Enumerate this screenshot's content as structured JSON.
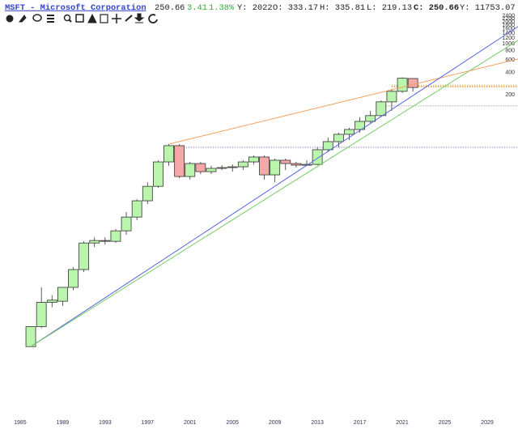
{
  "header": {
    "symbol": "MSFT - Microsoft Corporation",
    "last": "250.66",
    "change": "3.41",
    "change_pct": "1.38%",
    "year": "Y: 2022",
    "open": "O: 333.17",
    "high": "H: 335.81",
    "low": "L: 219.13",
    "close": "C: 250.66",
    "volume": "Y: 11753.07"
  },
  "chart_data": {
    "type": "candlestick",
    "x": [
      1986,
      1987,
      1988,
      1989,
      1990,
      1991,
      1992,
      1993,
      1994,
      1995,
      1996,
      1997,
      1998,
      1999,
      2000,
      2001,
      2002,
      2003,
      2004,
      2005,
      2006,
      2007,
      2008,
      2009,
      2010,
      2011,
      2012,
      2013,
      2014,
      2015,
      2016,
      2017,
      2018,
      2019,
      2020,
      2021,
      2022
    ],
    "open": [
      0.069,
      0.13,
      0.28,
      0.29,
      0.45,
      0.79,
      1.83,
      1.98,
      1.93,
      2.69,
      4.16,
      6.96,
      11.0,
      23.8,
      39.8,
      15.0,
      22.6,
      17.5,
      19.4,
      19.9,
      20.4,
      23.8,
      27.8,
      15.8,
      25.1,
      22.6,
      21.5,
      22.0,
      35.0,
      45.2,
      57.0,
      66.4,
      85.8,
      103,
      159,
      222,
      333.17
    ],
    "high": [
      0.13,
      0.45,
      0.35,
      0.45,
      0.85,
      1.93,
      2.19,
      2.19,
      2.84,
      4.86,
      7.3,
      12.5,
      25.1,
      41.8,
      41.8,
      23.8,
      23.8,
      21.0,
      21.5,
      22.0,
      25.1,
      29.2,
      29.2,
      26.4,
      26.4,
      23.8,
      25.1,
      37.8,
      51.4,
      60.0,
      70.0,
      97.6,
      120,
      167,
      239,
      345,
      335.81
    ],
    "low": [
      0.069,
      0.124,
      0.24,
      0.25,
      0.41,
      0.73,
      1.61,
      1.74,
      1.83,
      2.37,
      3.76,
      6.28,
      10.5,
      21.0,
      14.3,
      13.6,
      16.2,
      16.2,
      18.4,
      17.5,
      18.4,
      22.0,
      13.6,
      12.5,
      18.4,
      19.9,
      21.0,
      21.5,
      32.4,
      37.8,
      47.6,
      60.0,
      81.6,
      97.6,
      120,
      211,
      219.13
    ],
    "close": [
      0.13,
      0.28,
      0.3,
      0.45,
      0.79,
      1.83,
      1.98,
      1.93,
      2.69,
      4.16,
      6.96,
      11.0,
      23.8,
      39.8,
      15.0,
      22.6,
      17.5,
      19.4,
      19.9,
      20.4,
      23.8,
      27.8,
      15.8,
      25.1,
      22.6,
      21.5,
      22.0,
      35.0,
      45.2,
      57.0,
      66.4,
      85.8,
      103,
      159,
      222,
      336,
      250.66
    ],
    "up_color": "#baf5ad",
    "down_color": "#f5a8a8",
    "xlim": [
      1983.1,
      2031.9
    ],
    "xticks": [
      1985,
      1989,
      1993,
      1997,
      2001,
      2005,
      2009,
      2013,
      2017,
      2021,
      2025,
      2029
    ],
    "ylim": [
      0.0085,
      2650
    ],
    "log_scale": true,
    "grid": false,
    "yticks": [
      200,
      400,
      600,
      800,
      1000,
      1200,
      1400,
      1600,
      1800,
      2000,
      2200,
      2400
    ],
    "trendlines": [
      {
        "color": "#f5a05a",
        "x": [
          1999,
          2031.9
        ],
        "y": [
          41.8,
          618
        ]
      },
      {
        "color": "#5566dd",
        "x": [
          1986,
          2031.9
        ],
        "y": [
          0.069,
          1724
        ]
      },
      {
        "color": "#77cc66",
        "x": [
          1986,
          2031.9
        ],
        "y": [
          0.069,
          1114
        ]
      }
    ],
    "hlines": [
      {
        "color": "#6666cc",
        "from": 1999,
        "value": 37.8
      },
      {
        "color": "#999999",
        "from": 2019.5,
        "value": 140
      },
      {
        "color": "#e0a040",
        "from": 2020,
        "value": 270
      },
      {
        "color": "#e0a040",
        "from": 2020,
        "value": 262
      },
      {
        "color": "#e0a040",
        "from": 2020,
        "value": 254
      }
    ]
  }
}
